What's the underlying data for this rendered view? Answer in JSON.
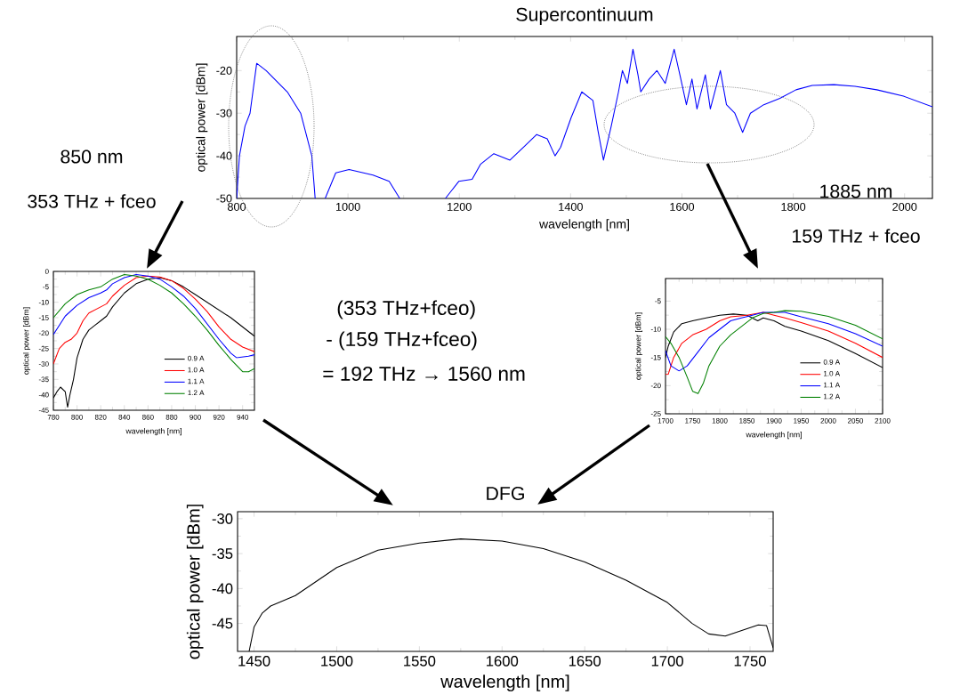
{
  "chart_data": [
    {
      "type": "line",
      "title": "Supercontinuum",
      "xlabel": "wavelength [nm]",
      "ylabel": "optical power [dBm]",
      "xlim": [
        800,
        2050
      ],
      "ylim": [
        -50,
        -12
      ],
      "xticks": [
        800,
        1000,
        1200,
        1400,
        1600,
        1800,
        2000
      ],
      "yticks": [
        -50,
        -40,
        -30,
        -20
      ],
      "x": [
        800,
        805,
        815,
        824,
        836,
        853,
        891,
        915,
        935,
        941,
        950,
        959,
        978,
        1002,
        1045,
        1074,
        1093,
        1130,
        1175,
        1199,
        1223,
        1238,
        1262,
        1291,
        1315,
        1339,
        1358,
        1372,
        1382,
        1401,
        1420,
        1440,
        1449,
        1459,
        1473,
        1486,
        1493,
        1502,
        1512,
        1521,
        1526,
        1541,
        1555,
        1570,
        1574,
        1586,
        1598,
        1608,
        1618,
        1627,
        1642,
        1651,
        1669,
        1680,
        1695,
        1709,
        1723,
        1747,
        1776,
        1805,
        1834,
        1873,
        1911,
        1950,
        1998,
        2050
      ],
      "series": [
        {
          "color": "#0000ff",
          "values": [
            -50,
            -40,
            -33,
            -30,
            -18.3,
            -20,
            -25,
            -30,
            -40,
            -50,
            null,
            -50,
            -44,
            -43.2,
            -44.5,
            -46,
            -50,
            null,
            -50,
            -46,
            -45.5,
            -42,
            -39.5,
            -41,
            -38,
            -35,
            -36,
            -40,
            -38,
            -31,
            -25,
            -27,
            -34,
            -41,
            -33,
            -25,
            -20,
            -23,
            -15,
            -21,
            -25,
            -22,
            -20,
            -23,
            -21,
            -15,
            -22,
            -28,
            -22,
            -29,
            -21,
            -29,
            -20,
            -28,
            -30,
            -34.5,
            -30,
            -28,
            -26.5,
            -24.5,
            -23.5,
            -23.3,
            -23.7,
            -24.5,
            -26,
            -28.5
          ]
        }
      ]
    },
    {
      "type": "line",
      "xlabel": "wavelength [nm]",
      "ylabel": "optical power [dBm]",
      "xlim": [
        780,
        950
      ],
      "ylim": [
        -45,
        0
      ],
      "xticks": [
        780,
        800,
        820,
        840,
        860,
        880,
        900,
        920,
        940
      ],
      "yticks": [
        -45,
        -40,
        -35,
        -30,
        -25,
        -20,
        -15,
        -10,
        -5,
        0
      ],
      "legend": "bottom right",
      "annotations": [
        "850 nm",
        "353 THz + fceo"
      ],
      "series": [
        {
          "name": "0.9 A",
          "color": "#000000",
          "x": [
            780,
            783,
            786,
            790,
            792,
            794,
            797,
            800,
            805,
            810,
            815,
            820,
            825,
            830,
            840,
            850,
            860,
            870,
            880,
            890,
            900,
            910,
            920,
            930,
            940,
            950
          ],
          "values": [
            -41,
            -39,
            -37.5,
            -39,
            -44,
            -40,
            -35,
            -28,
            -22,
            -19,
            -17.5,
            -16,
            -14.5,
            -11.5,
            -7,
            -4,
            -2.5,
            -2,
            -3,
            -5,
            -7.5,
            -10,
            -12.5,
            -15,
            -18,
            -21
          ]
        },
        {
          "name": "1.0 A",
          "color": "#ff0000",
          "x": [
            780,
            785,
            790,
            795,
            800,
            805,
            810,
            820,
            825,
            830,
            840,
            850,
            860,
            870,
            880,
            890,
            900,
            910,
            920,
            930,
            940,
            950
          ],
          "values": [
            -30,
            -25,
            -23,
            -22,
            -20,
            -16,
            -13.5,
            -11.5,
            -10.5,
            -8,
            -4.5,
            -2,
            -1.5,
            -1.8,
            -3,
            -5.5,
            -9,
            -13,
            -18,
            -22,
            -24.5,
            -26
          ]
        },
        {
          "name": "1.1 A",
          "color": "#0000ff",
          "x": [
            780,
            790,
            800,
            810,
            820,
            825,
            830,
            840,
            850,
            860,
            870,
            880,
            890,
            900,
            910,
            920,
            930,
            935,
            945,
            950
          ],
          "values": [
            -20.5,
            -14.5,
            -11,
            -8.5,
            -7,
            -6,
            -4,
            -2,
            -1,
            -1.5,
            -2.5,
            -5,
            -8,
            -12,
            -17,
            -22,
            -26.5,
            -28,
            -27.5,
            -27
          ]
        },
        {
          "name": "1.2 A",
          "color": "#008000",
          "x": [
            780,
            790,
            800,
            810,
            820,
            830,
            840,
            850,
            860,
            870,
            880,
            890,
            900,
            910,
            920,
            930,
            940,
            945,
            950
          ],
          "values": [
            -15,
            -10.5,
            -7.5,
            -6,
            -5,
            -2.5,
            -1,
            -1.5,
            -2.5,
            -4.5,
            -7,
            -10.5,
            -14.5,
            -19,
            -24,
            -28.5,
            -32.5,
            -32.5,
            -31.5
          ]
        }
      ]
    },
    {
      "type": "line",
      "xlabel": "wavelength [nm]",
      "ylabel": "optical power [dBm]",
      "xlim": [
        1700,
        2100
      ],
      "ylim": [
        -25,
        -1
      ],
      "xticks": [
        1700,
        1750,
        1800,
        1850,
        1900,
        1950,
        2000,
        2050,
        2100
      ],
      "yticks": [
        -25,
        -20,
        -15,
        -10,
        -5
      ],
      "legend": "bottom right",
      "annotations": [
        "1885 nm",
        "159 THz + fceo"
      ],
      "series": [
        {
          "name": "0.9 A",
          "color": "#000000",
          "x": [
            1700,
            1705,
            1715,
            1730,
            1750,
            1775,
            1800,
            1825,
            1850,
            1870,
            1880,
            1900,
            1920,
            1950,
            2000,
            2050,
            2100
          ],
          "values": [
            -15,
            -13,
            -10.5,
            -9,
            -8.5,
            -8,
            -7.5,
            -7.3,
            -7.5,
            -8.5,
            -8,
            -8.5,
            -9.5,
            -10.3,
            -12,
            -14.3,
            -16.8
          ]
        },
        {
          "name": "1.0 A",
          "color": "#ff0000",
          "x": [
            1700,
            1705,
            1715,
            1730,
            1750,
            1775,
            1800,
            1820,
            1850,
            1880,
            1900,
            1920,
            1950,
            2000,
            2050,
            2100
          ],
          "values": [
            -18,
            -18,
            -15,
            -12.5,
            -11,
            -10,
            -8.5,
            -7.8,
            -7.5,
            -7,
            -7.5,
            -8,
            -8.8,
            -10.3,
            -12.5,
            -15
          ]
        },
        {
          "name": "1.1 A",
          "color": "#0000ff",
          "x": [
            1700,
            1710,
            1725,
            1740,
            1760,
            1780,
            1800,
            1820,
            1840,
            1860,
            1880,
            1900,
            1920,
            1950,
            2000,
            2050,
            2100
          ],
          "values": [
            -13.8,
            -16.5,
            -17.4,
            -16.5,
            -14,
            -11.5,
            -10,
            -8.5,
            -8,
            -7.5,
            -7,
            -7,
            -7,
            -7.8,
            -9,
            -10.8,
            -13
          ]
        },
        {
          "name": "1.2 A",
          "color": "#008000",
          "x": [
            1700,
            1710,
            1725,
            1740,
            1750,
            1760,
            1770,
            1780,
            1800,
            1820,
            1840,
            1860,
            1880,
            1900,
            1920,
            1950,
            2000,
            2050,
            2100
          ],
          "values": [
            -11.3,
            -12.5,
            -15,
            -18.5,
            -21,
            -21.4,
            -19.5,
            -16.5,
            -13,
            -11,
            -9.5,
            -8,
            -7.2,
            -7,
            -6.7,
            -6.8,
            -7.7,
            -9.3,
            -11.7
          ]
        }
      ]
    },
    {
      "type": "line",
      "title": "DFG",
      "xlabel": "wavelength [nm]",
      "ylabel": "optical power [dBm]",
      "xlim": [
        1440,
        1764
      ],
      "ylim": [
        -49,
        -29
      ],
      "xticks": [
        1450,
        1500,
        1550,
        1600,
        1650,
        1700,
        1750
      ],
      "yticks": [
        -45,
        -40,
        -35,
        -30
      ],
      "x": [
        1447,
        1450,
        1455,
        1460,
        1475,
        1500,
        1525,
        1550,
        1575,
        1600,
        1625,
        1650,
        1675,
        1700,
        1715,
        1725,
        1735,
        1745,
        1755,
        1760,
        1764
      ],
      "series": [
        {
          "color": "#000000",
          "values": [
            -49,
            -45.5,
            -43.5,
            -42.5,
            -41,
            -37,
            -34.5,
            -33.5,
            -32.9,
            -33.2,
            -34.3,
            -36.2,
            -38.8,
            -42,
            -45,
            -46.5,
            -46.8,
            -46,
            -45.2,
            -45.3,
            -48.5
          ]
        }
      ]
    },
    {
      "type": "other",
      "annotations": [
        "(353 THz+fceo)",
        "- (159 THz+fceo)",
        "= 192 THz → 1560 nm"
      ]
    }
  ]
}
